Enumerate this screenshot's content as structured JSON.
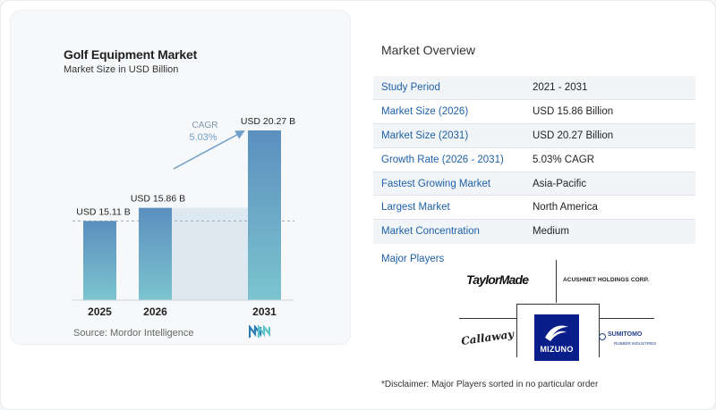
{
  "chart_data": {
    "type": "bar",
    "title": "Golf Equipment Market",
    "subtitle": "Market Size in USD Billion",
    "categories": [
      "2025",
      "2026",
      "2031"
    ],
    "values": [
      15.11,
      15.86,
      20.27
    ],
    "value_labels": [
      "USD 15.11 B",
      "USD 15.86 B",
      "USD 20.27 B"
    ],
    "annotation": {
      "label": "CAGR",
      "value": "5.03%"
    },
    "colors": {
      "bar_top": "#5b8fbe",
      "bar_bottom": "#7cc4cf",
      "span": "#dde8f1",
      "annotation": "#6f9fc8"
    },
    "source": "Source: Mordor Intelligence"
  },
  "overview": {
    "title": "Market Overview",
    "rows": [
      {
        "key": "Study Period",
        "value": "2021 - 2031"
      },
      {
        "key": "Market Size (2026)",
        "value": "USD 15.86 Billion"
      },
      {
        "key": "Market Size (2031)",
        "value": "USD 20.27 Billion"
      },
      {
        "key": "Growth Rate (2026 - 2031)",
        "value": "5.03% CAGR"
      },
      {
        "key": "Fastest Growing Market",
        "value": "Asia-Pacific"
      },
      {
        "key": "Largest Market",
        "value": "North America"
      },
      {
        "key": "Market Concentration",
        "value": "Medium"
      }
    ]
  },
  "players": {
    "title": "Major Players",
    "logos": {
      "taylormade": "TaylorMade",
      "acushnet": "ACUSHNET HOLDINGS CORP.",
      "callaway": "Callaway",
      "mizuno": "MIZUNO",
      "sumitomo": "SUMITOMO",
      "sumitomo_sub": "RUBBER INDUSTRIES"
    }
  },
  "disclaimer": "*Disclaimer: Major Players sorted in no particular order"
}
